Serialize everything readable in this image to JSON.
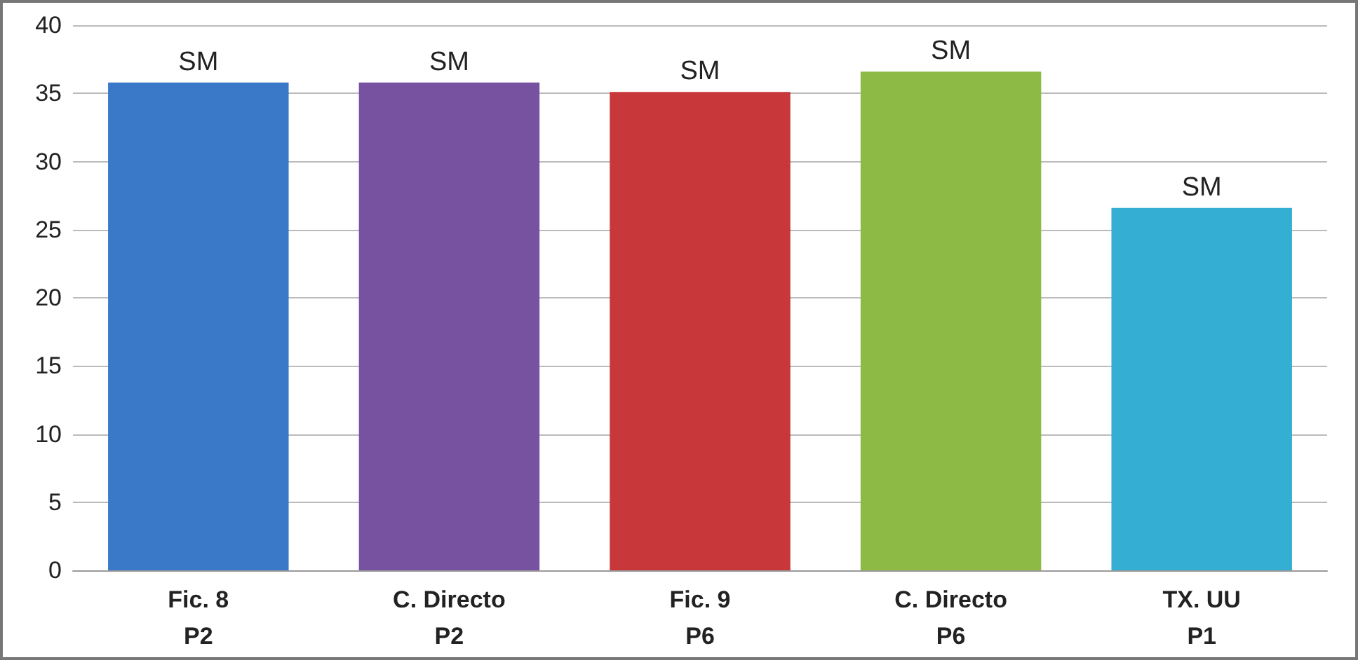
{
  "chart_data": {
    "type": "bar",
    "categories": [
      "Fic. 8\nP2",
      "C. Directo\nP2",
      "Fic. 9\nP6",
      "C. Directo\nP6",
      "TX. UU\nP1"
    ],
    "values": [
      35.8,
      35.8,
      35.1,
      36.6,
      26.6
    ],
    "colors": [
      "#3a78c8",
      "#7652a0",
      "#c8373a",
      "#8cba45",
      "#35aed4"
    ],
    "value_labels": [
      "SM",
      "SM",
      "SM",
      "SM",
      "SM"
    ],
    "ylim": [
      0,
      40
    ],
    "yticks": [
      0,
      5,
      10,
      15,
      20,
      25,
      30,
      35,
      40
    ],
    "grid": "y"
  }
}
